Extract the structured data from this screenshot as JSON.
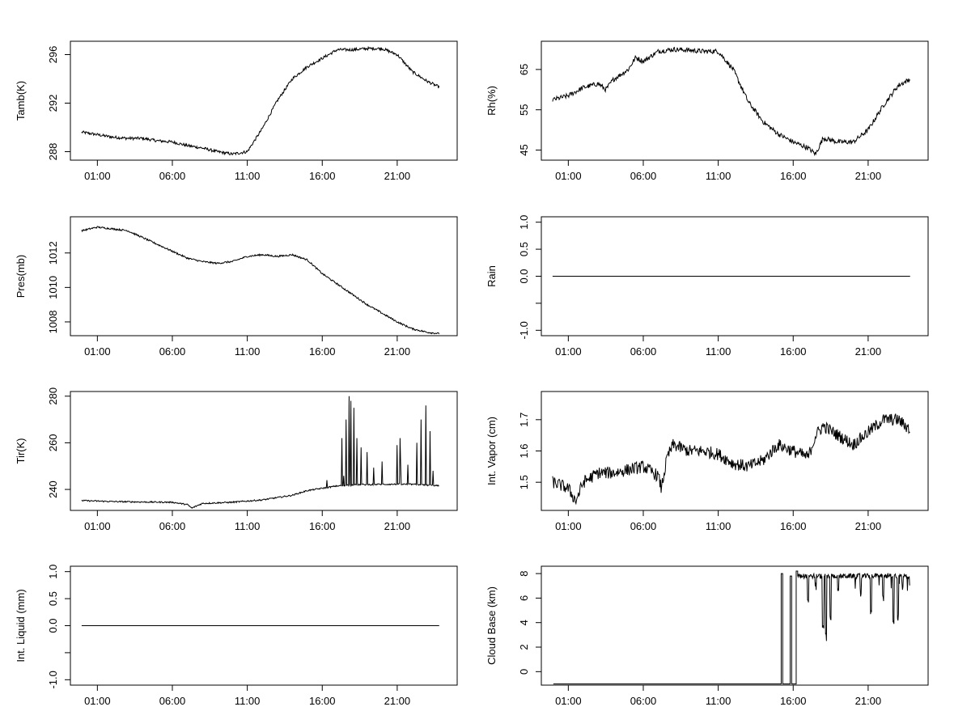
{
  "chart_data": [
    {
      "type": "line",
      "ylabel": "Tamb(K)",
      "xticks": [
        "01:00",
        "06:00",
        "11:00",
        "16:00",
        "21:00"
      ],
      "yticks": [
        288,
        292,
        296
      ],
      "ylim": [
        287.3,
        297.1
      ],
      "x_hours": [
        0,
        1,
        2,
        3,
        4,
        5,
        6,
        7,
        8,
        9,
        10,
        11,
        12,
        13,
        14,
        15,
        16,
        17,
        18,
        19,
        20,
        21,
        22,
        23,
        24
      ],
      "y": [
        289.6,
        289.4,
        289.2,
        289.1,
        289.1,
        288.9,
        288.8,
        288.5,
        288.3,
        288.0,
        287.8,
        288.0,
        289.9,
        292.2,
        294.0,
        295.0,
        295.7,
        296.4,
        296.4,
        296.5,
        296.5,
        296.0,
        294.6,
        293.8,
        293.2
      ],
      "noise": 0.12
    },
    {
      "type": "line",
      "ylabel": "Rh(%)",
      "xticks": [
        "01:00",
        "06:00",
        "11:00",
        "16:00",
        "21:00"
      ],
      "yticks": [
        45,
        55,
        65
      ],
      "ylim": [
        42.5,
        72
      ],
      "x_hours": [
        0,
        1,
        2,
        3,
        3.5,
        4,
        5,
        5.5,
        6,
        7,
        8,
        9,
        10,
        11,
        12,
        13,
        14,
        15,
        16,
        17,
        17.5,
        18,
        19,
        20,
        21,
        22,
        23,
        24
      ],
      "y": [
        57.5,
        58.5,
        60.5,
        61.5,
        60.0,
        62.5,
        65.0,
        68.0,
        67.0,
        69.5,
        70.0,
        69.8,
        69.5,
        69.5,
        65.0,
        57.0,
        52.0,
        49.0,
        47.0,
        45.5,
        44.0,
        48.0,
        47.0,
        47.0,
        50.0,
        56.0,
        61.0,
        63.0
      ],
      "noise": 0.6
    },
    {
      "type": "line",
      "ylabel": "Pres(mb)",
      "xticks": [
        "01:00",
        "06:00",
        "11:00",
        "16:00",
        "21:00"
      ],
      "yticks": [
        1008,
        1010,
        1012
      ],
      "ylim": [
        1007.2,
        1014.1
      ],
      "x_hours": [
        0,
        1,
        2,
        3,
        4,
        5,
        6,
        7,
        8,
        9,
        10,
        11,
        12,
        13,
        14,
        15,
        16,
        17,
        18,
        19,
        20,
        21,
        22,
        23,
        24
      ],
      "y": [
        1013.3,
        1013.5,
        1013.4,
        1013.3,
        1012.9,
        1012.5,
        1012.1,
        1011.7,
        1011.5,
        1011.4,
        1011.5,
        1011.8,
        1011.9,
        1011.8,
        1011.9,
        1011.6,
        1010.8,
        1010.2,
        1009.6,
        1009.0,
        1008.5,
        1008.0,
        1007.6,
        1007.4,
        1007.3
      ],
      "noise": 0.05
    },
    {
      "type": "line",
      "ylabel": "Rain",
      "xticks": [
        "01:00",
        "06:00",
        "11:00",
        "16:00",
        "21:00"
      ],
      "yticks": [
        -1.0,
        -0.5,
        0.0,
        0.5,
        1.0
      ],
      "yticks_shown": [
        "-1.0",
        "",
        "0.0",
        "0.5",
        "1.0"
      ],
      "ylim": [
        -1.1,
        1.1
      ],
      "x_hours": [
        0,
        24
      ],
      "y": [
        0,
        0
      ],
      "noise": 0
    },
    {
      "type": "line",
      "ylabel": "Tir(K)",
      "xticks": [
        "01:00",
        "06:00",
        "11:00",
        "16:00",
        "21:00"
      ],
      "yticks": [
        240,
        260,
        280
      ],
      "ylim": [
        231,
        282
      ],
      "x_hours": [
        0,
        2,
        4,
        6,
        7,
        7.3,
        8,
        10,
        12,
        14,
        15,
        16,
        17,
        18,
        20,
        22,
        24
      ],
      "y": [
        235.2,
        234.8,
        234.6,
        234.5,
        233.5,
        232.0,
        234.0,
        234.5,
        235.5,
        237.5,
        239.5,
        240.5,
        241.5,
        242.0,
        242.2,
        242.2,
        241.5
      ],
      "noise": 0.3,
      "spikes": [
        [
          16.3,
          244
        ],
        [
          17.3,
          262
        ],
        [
          17.6,
          270
        ],
        [
          17.8,
          280
        ],
        [
          17.9,
          278
        ],
        [
          18.1,
          275
        ],
        [
          18.3,
          262
        ],
        [
          18.6,
          258
        ],
        [
          19.0,
          256
        ],
        [
          20.0,
          252
        ],
        [
          21.0,
          259
        ],
        [
          21.2,
          262
        ],
        [
          22.3,
          260
        ],
        [
          22.6,
          270
        ],
        [
          22.9,
          276
        ],
        [
          23.2,
          265
        ],
        [
          23.4,
          248
        ]
      ]
    },
    {
      "type": "line",
      "ylabel": "Int. Vapor (cm)",
      "xticks": [
        "01:00",
        "06:00",
        "11:00",
        "16:00",
        "21:00"
      ],
      "yticks": [
        1.5,
        1.6,
        1.7
      ],
      "ylim": [
        1.41,
        1.79
      ],
      "x_hours": [
        0,
        1,
        1.5,
        2,
        3,
        4,
        5,
        6,
        7,
        7.2,
        7.6,
        8,
        9,
        10,
        11,
        12,
        13,
        14,
        15,
        16,
        17,
        17.5,
        18,
        19,
        20,
        21,
        22,
        23,
        24
      ],
      "y": [
        1.5,
        1.48,
        1.44,
        1.5,
        1.53,
        1.53,
        1.54,
        1.55,
        1.52,
        1.48,
        1.58,
        1.62,
        1.6,
        1.6,
        1.59,
        1.56,
        1.55,
        1.57,
        1.62,
        1.6,
        1.58,
        1.65,
        1.68,
        1.65,
        1.62,
        1.66,
        1.7,
        1.7,
        1.66
      ],
      "noise": 0.02
    },
    {
      "type": "line",
      "ylabel": "Int. Liquid (mm)",
      "xticks": [
        "01:00",
        "06:00",
        "11:00",
        "16:00",
        "21:00"
      ],
      "yticks": [
        -1.0,
        -0.5,
        0.0,
        0.5,
        1.0
      ],
      "yticks_shown": [
        "-1.0",
        "",
        "0.0",
        "0.5",
        "1.0"
      ],
      "ylim": [
        -1.1,
        1.1
      ],
      "x_hours": [
        0,
        24
      ],
      "y": [
        0,
        0
      ],
      "noise": 0
    },
    {
      "type": "line",
      "ylabel": "Cloud Base (km)",
      "xticks": [
        "01:00",
        "06:00",
        "11:00",
        "16:00",
        "21:00"
      ],
      "yticks": [
        0,
        2,
        4,
        6,
        8
      ],
      "ylim": [
        -1.1,
        8.6
      ],
      "x_hours": [
        0,
        15.2,
        15.2,
        15.3,
        15.3,
        15.8,
        15.8,
        15.9,
        15.9,
        16.2,
        16.2,
        16.3,
        16.3,
        24
      ],
      "y": [
        -1,
        -1,
        8,
        8,
        -1,
        -1,
        7.8,
        7.8,
        -1,
        -1,
        8.2,
        8.2,
        7.8,
        7.9
      ],
      "noise": 0,
      "dips": [
        [
          17.0,
          5.5
        ],
        [
          17.5,
          6.5
        ],
        [
          18.0,
          3.5
        ],
        [
          18.2,
          2.5
        ],
        [
          18.5,
          4.0
        ],
        [
          19.0,
          6.0
        ],
        [
          20.5,
          6.0
        ],
        [
          21.2,
          4.5
        ],
        [
          22.0,
          5.5
        ],
        [
          22.7,
          3.5
        ],
        [
          23.0,
          4.0
        ],
        [
          23.3,
          6.5
        ]
      ]
    }
  ]
}
